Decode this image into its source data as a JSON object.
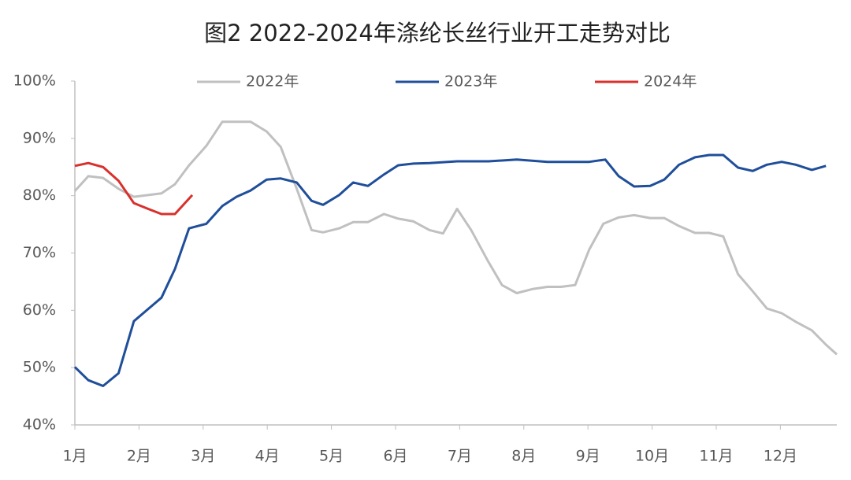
{
  "chart_data": {
    "type": "line",
    "title": "图2 2022-2024年涤纶长丝行业开工走势对比",
    "xlim": [
      0,
      11.88
    ],
    "xticks": [
      {
        "value": 0,
        "label": "1月"
      },
      {
        "value": 1,
        "label": "2月"
      },
      {
        "value": 2,
        "label": "3月"
      },
      {
        "value": 3,
        "label": "4月"
      },
      {
        "value": 4,
        "label": "5月"
      },
      {
        "value": 5,
        "label": "6月"
      },
      {
        "value": 6,
        "label": "7月"
      },
      {
        "value": 7,
        "label": "8月"
      },
      {
        "value": 8,
        "label": "9月"
      },
      {
        "value": 9,
        "label": "10月"
      },
      {
        "value": 10,
        "label": "11月"
      },
      {
        "value": 11,
        "label": "12月"
      }
    ],
    "ylim": [
      40,
      100
    ],
    "yticks": [
      {
        "value": 40,
        "label": "40%"
      },
      {
        "value": 50,
        "label": "50%"
      },
      {
        "value": 60,
        "label": "60%"
      },
      {
        "value": 70,
        "label": "70%"
      },
      {
        "value": 80,
        "label": "80%"
      },
      {
        "value": 90,
        "label": "90%"
      },
      {
        "value": 100,
        "label": "100%"
      }
    ],
    "grid": false,
    "legend": "top",
    "series": [
      {
        "name": "2022年",
        "color": "#c0c0c0",
        "x": [
          0,
          0.21,
          0.44,
          0.68,
          0.92,
          1.35,
          1.56,
          1.78,
          2.05,
          2.3,
          2.52,
          2.74,
          2.99,
          3.21,
          3.46,
          3.69,
          3.87,
          4.12,
          4.34,
          4.57,
          4.82,
          5.04,
          5.28,
          5.53,
          5.74,
          5.96,
          6.18,
          6.43,
          6.66,
          6.89,
          7.13,
          7.37,
          7.58,
          7.8,
          8.02,
          8.24,
          8.48,
          8.72,
          8.97,
          9.19,
          9.42,
          9.67,
          9.89,
          10.11,
          10.34,
          10.57,
          10.79,
          11.02,
          11.24,
          11.49,
          11.71,
          11.88
        ],
        "values": [
          80.8,
          83.4,
          83.1,
          81.2,
          79.8,
          80.4,
          82.0,
          85.3,
          88.7,
          92.9,
          92.9,
          92.9,
          91.2,
          88.5,
          81.2,
          74.0,
          73.6,
          74.3,
          75.4,
          75.4,
          76.8,
          76.0,
          75.5,
          74.0,
          73.4,
          77.7,
          74.0,
          68.8,
          64.4,
          63.0,
          63.7,
          64.1,
          64.1,
          64.4,
          70.6,
          75.1,
          76.2,
          76.6,
          76.1,
          76.1,
          74.7,
          73.5,
          73.5,
          72.9,
          66.3,
          63.3,
          60.3,
          59.5,
          58.0,
          56.5,
          54.0,
          52.3
        ]
      },
      {
        "name": "2023年",
        "color": "#1f4e9a",
        "x": [
          0,
          0.21,
          0.44,
          0.68,
          0.92,
          1.14,
          1.35,
          1.56,
          1.78,
          2.05,
          2.3,
          2.52,
          2.74,
          2.99,
          3.21,
          3.46,
          3.69,
          3.87,
          4.12,
          4.34,
          4.57,
          4.82,
          5.04,
          5.28,
          5.53,
          5.96,
          6.45,
          6.89,
          7.37,
          8.02,
          8.27,
          8.48,
          8.72,
          8.97,
          9.19,
          9.42,
          9.67,
          9.89,
          10.11,
          10.34,
          10.57,
          10.79,
          11.02,
          11.24,
          11.49,
          11.71
        ],
        "values": [
          50.1,
          47.8,
          46.8,
          49.0,
          58.1,
          60.2,
          62.2,
          67.2,
          74.3,
          75.1,
          78.2,
          79.8,
          80.9,
          82.8,
          83.0,
          82.3,
          79.1,
          78.4,
          80.1,
          82.3,
          81.7,
          83.7,
          85.3,
          85.6,
          85.7,
          86.0,
          86.0,
          86.3,
          85.9,
          85.9,
          86.3,
          83.4,
          81.6,
          81.7,
          82.8,
          85.4,
          86.7,
          87.1,
          87.1,
          84.9,
          84.3,
          85.4,
          85.9,
          85.4,
          84.5,
          85.2
        ]
      },
      {
        "name": "2024年",
        "color": "#d9302c",
        "x": [
          0,
          0.21,
          0.44,
          0.68,
          0.92,
          1.14,
          1.35,
          1.56,
          1.83
        ],
        "values": [
          85.2,
          85.7,
          85.0,
          82.6,
          78.7,
          77.7,
          76.8,
          76.8,
          80.1
        ]
      }
    ]
  }
}
